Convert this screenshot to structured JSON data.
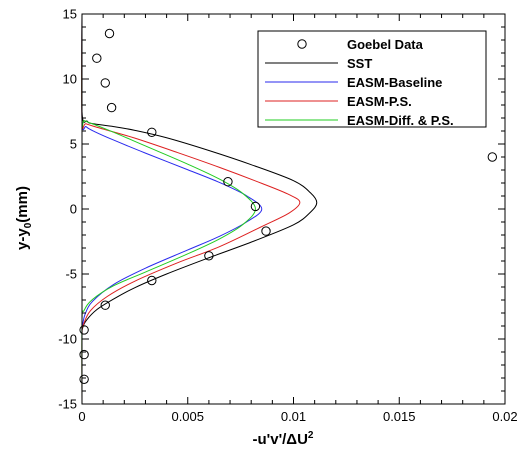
{
  "chart_data": {
    "type": "line",
    "xlabel": "-u'v'/ΔU",
    "xlabel_sup": "2",
    "ylabel": "y-y",
    "ylabel_sub": "0",
    "ylabel_unit": "(mm)",
    "xlim": [
      0,
      0.02
    ],
    "ylim": [
      -15,
      15
    ],
    "xticks": [
      0,
      0.005,
      0.01,
      0.015,
      0.02
    ],
    "xtick_labels": [
      "0",
      "0.005",
      "0.01",
      "0.015",
      "0.02"
    ],
    "yticks": [
      -15,
      -10,
      -5,
      0,
      5,
      10,
      15
    ],
    "ytick_labels": [
      "-15",
      "-10",
      "-5",
      "0",
      "5",
      "10",
      "15"
    ],
    "grid": false,
    "legend_position": "top-right",
    "scatter": {
      "name": "Goebel Data",
      "color": "#000000",
      "points": [
        [
          0.0013,
          13.5
        ],
        [
          0.0007,
          11.6
        ],
        [
          0.0011,
          9.7
        ],
        [
          0.0014,
          7.8
        ],
        [
          0.0033,
          5.9
        ],
        [
          0.0194,
          4.0
        ],
        [
          0.0069,
          2.1
        ],
        [
          0.0082,
          0.2
        ],
        [
          0.0087,
          -1.7
        ],
        [
          0.006,
          -3.6
        ],
        [
          0.0033,
          -5.5
        ],
        [
          0.0011,
          -7.4
        ],
        [
          0.0001,
          -9.3
        ],
        [
          0.0001,
          -11.2
        ],
        [
          0.0001,
          -13.1
        ]
      ]
    },
    "series": [
      {
        "name": "SST",
        "color": "#000000",
        "peak": 0.0111,
        "center": 0.5,
        "points": [
          [
            0.0,
            15.0
          ],
          [
            0.0,
            7.5
          ],
          [
            0.00025,
            6.75
          ],
          [
            0.0005,
            6.57
          ],
          [
            0.0015,
            6.34
          ],
          [
            0.0025,
            6.05
          ],
          [
            0.004,
            5.48
          ],
          [
            0.006,
            4.5
          ],
          [
            0.008,
            3.41
          ],
          [
            0.01,
            2.18
          ],
          [
            0.0108,
            1.25
          ],
          [
            0.0111,
            0.5
          ],
          [
            0.0108,
            -0.25
          ],
          [
            0.01,
            -1.22
          ],
          [
            0.008,
            -2.55
          ],
          [
            0.006,
            -3.75
          ],
          [
            0.004,
            -5.0
          ],
          [
            0.0025,
            -6.05
          ],
          [
            0.0015,
            -6.92
          ],
          [
            0.0007,
            -7.74
          ],
          [
            0.0002,
            -8.58
          ],
          [
            2e-05,
            -9.2
          ],
          [
            0.0,
            -10.0
          ],
          [
            0.0,
            -15.0
          ]
        ]
      },
      {
        "name": "EASM-Baseline",
        "color": "#2a2aee",
        "peak": 0.0085,
        "center": 0.0,
        "points": [
          [
            0.0,
            15.0
          ],
          [
            0.0,
            6.87
          ],
          [
            0.0002,
            6.33
          ],
          [
            0.0006,
            5.95
          ],
          [
            0.0015,
            5.3
          ],
          [
            0.003,
            4.3
          ],
          [
            0.005,
            3.02
          ],
          [
            0.0065,
            2.04
          ],
          [
            0.0078,
            1.0
          ],
          [
            0.0085,
            0.0
          ],
          [
            0.0078,
            -0.98
          ],
          [
            0.0065,
            -2.1
          ],
          [
            0.005,
            -3.15
          ],
          [
            0.003,
            -4.55
          ],
          [
            0.0015,
            -5.8
          ],
          [
            0.0005,
            -7.1
          ],
          [
            0.00015,
            -8.08
          ],
          [
            2e-05,
            -9.0
          ],
          [
            0.0,
            -9.5
          ],
          [
            0.0,
            -15.0
          ]
        ]
      },
      {
        "name": "EASM-P.S.",
        "color": "#dd2020",
        "peak": 0.0103,
        "center": 0.5,
        "points": [
          [
            0.0,
            15.0
          ],
          [
            0.0,
            6.87
          ],
          [
            0.0002,
            6.55
          ],
          [
            0.001,
            6.15
          ],
          [
            0.0025,
            5.45
          ],
          [
            0.0045,
            4.35
          ],
          [
            0.0065,
            3.2
          ],
          [
            0.0085,
            1.97
          ],
          [
            0.0098,
            1.1
          ],
          [
            0.0103,
            0.5
          ],
          [
            0.0098,
            -0.3
          ],
          [
            0.0085,
            -1.35
          ],
          [
            0.0065,
            -2.9
          ],
          [
            0.0045,
            -4.15
          ],
          [
            0.0025,
            -5.55
          ],
          [
            0.0012,
            -6.72
          ],
          [
            0.0004,
            -7.82
          ],
          [
            8e-05,
            -8.85
          ],
          [
            0.0,
            -9.7
          ],
          [
            0.0,
            -15.0
          ]
        ]
      },
      {
        "name": "EASM-Diff. & P.S.",
        "color": "#22cc22",
        "peak": 0.0082,
        "center": 0.0,
        "points": [
          [
            0.0,
            15.0
          ],
          [
            0.0,
            6.95
          ],
          [
            0.0001,
            6.8
          ],
          [
            0.0005,
            6.55
          ],
          [
            0.0015,
            5.9
          ],
          [
            0.003,
            4.85
          ],
          [
            0.005,
            3.45
          ],
          [
            0.0065,
            2.3
          ],
          [
            0.0076,
            1.2
          ],
          [
            0.0082,
            0.0
          ],
          [
            0.0076,
            -1.2
          ],
          [
            0.0065,
            -2.3
          ],
          [
            0.005,
            -3.45
          ],
          [
            0.003,
            -4.85
          ],
          [
            0.0015,
            -5.9
          ],
          [
            0.0005,
            -6.95
          ],
          [
            0.0001,
            -7.8
          ],
          [
            0.0,
            -8.6
          ],
          [
            0.0,
            -15.0
          ]
        ]
      }
    ]
  }
}
